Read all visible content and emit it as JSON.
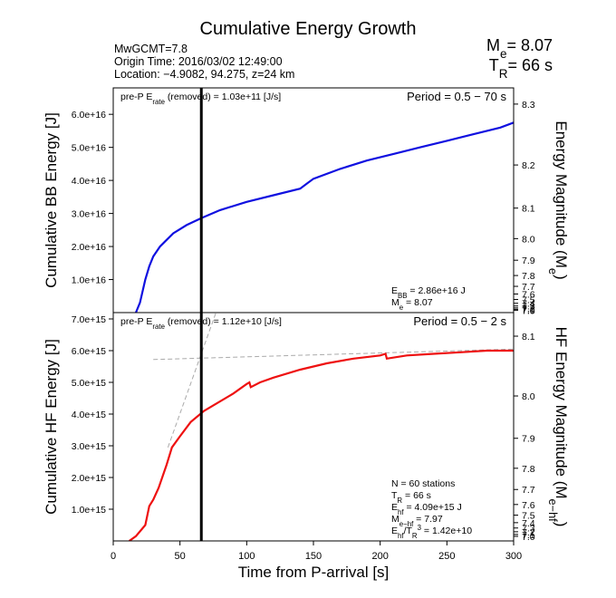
{
  "title": "Cumulative Energy Growth",
  "header_lines": [
    "MwGCMT=7.8",
    "Origin Time: 2016/03/02 12:49:00",
    "Location: −4.9082, 94.275, z=24 km"
  ],
  "summary": [
    [
      {
        "t": "M"
      },
      {
        "sub": "e"
      },
      {
        "t": "= 8.07"
      }
    ],
    [
      {
        "t": "T"
      },
      {
        "sub": "R"
      },
      {
        "t": "= 66 s"
      }
    ]
  ],
  "chart_data": [
    {
      "type": "line",
      "ylabel": "Cumulative BB Energy [J]",
      "y2label": [
        {
          "t": "Energy Magnitude (M"
        },
        {
          "sub": "e"
        },
        {
          "t": ")"
        }
      ],
      "xlim": [
        0,
        300
      ],
      "ylim": [
        0,
        6.8e+16
      ],
      "yticks": [
        {
          "value": 1e+16,
          "label": "1.0e+16"
        },
        {
          "value": 2e+16,
          "label": "2.0e+16"
        },
        {
          "value": 3e+16,
          "label": "3.0e+16"
        },
        {
          "value": 4e+16,
          "label": "4.0e+16"
        },
        {
          "value": 5e+16,
          "label": "5.0e+16"
        },
        {
          "value": 6e+16,
          "label": "6.0e+16"
        }
      ],
      "y2ticks": [
        8.3,
        8.2,
        8.1,
        {
          "value": 8,
          "label": "8.0"
        },
        7.9,
        7.8,
        7.7,
        7.6,
        7.5,
        7.4,
        7.3,
        7.2,
        7.1,
        {
          "value": 7,
          "label": "7.0"
        }
      ],
      "series": [
        {
          "color": "#1010e0",
          "x": [
            17,
            20,
            24,
            27,
            30,
            35,
            40,
            45,
            55,
            66,
            80,
            100,
            120,
            140,
            145,
            150,
            170,
            190,
            210,
            230,
            250,
            270,
            290,
            300
          ],
          "values": [
            0,
            3000000000000000.0,
            1e+16,
            1.4e+16,
            1.7e+16,
            2e+16,
            2.2e+16,
            2.4e+16,
            2.65e+16,
            2.86e+16,
            3.1e+16,
            3.35e+16,
            3.55e+16,
            3.75e+16,
            3.9e+16,
            4.05e+16,
            4.35e+16,
            4.6e+16,
            4.8e+16,
            5e+16,
            5.2e+16,
            5.4e+16,
            5.6e+16,
            5.75e+16
          ]
        }
      ],
      "vline": 66,
      "top_left": [
        {
          "t": "pre-P E"
        },
        {
          "sub": "rate"
        },
        {
          "t": " (removed) = 1.03e+11 [J/s]"
        }
      ],
      "top_right": "Period = 0.5 − 70 s",
      "notes": [
        [
          {
            "t": "E"
          },
          {
            "sub": "BB"
          },
          {
            "t": " = 2.86e+16 J"
          }
        ],
        [
          {
            "t": "M"
          },
          {
            "sub": "e"
          },
          {
            "t": " = 8.07"
          }
        ]
      ]
    },
    {
      "type": "line",
      "ylabel": "Cumulative HF Energy [J]",
      "y2label": [
        {
          "t": "HF Energy Magnitude (M"
        },
        {
          "sub": "e−hf"
        },
        {
          "t": ")"
        }
      ],
      "xlabel": "Time from P-arrival [s]",
      "xlim": [
        0,
        300
      ],
      "xticks": [
        0,
        50,
        100,
        150,
        200,
        250,
        300
      ],
      "ylim": [
        0,
        7200000000000000.0
      ],
      "yticks": [
        {
          "value": 1000000000000000.0,
          "label": "1.0e+15"
        },
        {
          "value": 2000000000000000.0,
          "label": "2.0e+15"
        },
        {
          "value": 3000000000000000.0,
          "label": "3.0e+15"
        },
        {
          "value": 4000000000000000.0,
          "label": "4.0e+15"
        },
        {
          "value": 5000000000000000.0,
          "label": "5.0e+15"
        },
        {
          "value": 6000000000000000.0,
          "label": "6.0e+15"
        },
        {
          "value": 7000000000000000.0,
          "label": "7.0e+15"
        }
      ],
      "y2ticks": [
        8.1,
        {
          "value": 8,
          "label": "8.0"
        },
        7.9,
        7.8,
        7.7,
        7.6,
        7.5,
        7.4,
        7.3,
        7.2,
        7.1,
        {
          "value": 7,
          "label": "7.0"
        }
      ],
      "series": [
        {
          "color": "#ee1111",
          "x": [
            12,
            17,
            20,
            24,
            27,
            30,
            34,
            40,
            44,
            50,
            58,
            68,
            78,
            90,
            100,
            102,
            103,
            110,
            120,
            140,
            160,
            180,
            200,
            204,
            205,
            220,
            240,
            260,
            280,
            300
          ],
          "values": [
            0,
            150000000000000.0,
            300000000000000.0,
            500000000000000.0,
            1100000000000000.0,
            1300000000000000.0,
            1670000000000000.0,
            2400000000000000.0,
            2950000000000000.0,
            3300000000000000.0,
            3750000000000000.0,
            4100000000000000.0,
            4350000000000000.0,
            4650000000000000.0,
            4950000000000000.0,
            5000000000000000.0,
            4850000000000000.0,
            5000000000000000.0,
            5150000000000000.0,
            5400000000000000.0,
            5600000000000000.0,
            5750000000000000.0,
            5850000000000000.0,
            5900000000000000.0,
            5750000000000000.0,
            5850000000000000.0,
            5900000000000000.0,
            5950000000000000.0,
            6000000000000000.0,
            6000000000000000.0
          ]
        }
      ],
      "reference_lines": [
        {
          "color": "#aaaaaa",
          "x": [
            41,
            77
          ],
          "values": [
            2950000000000000.0,
            7200000000000000.0
          ]
        },
        {
          "color": "#aaaaaa",
          "x": [
            30,
            300
          ],
          "values": [
            5720000000000000.0,
            6050000000000000.0
          ]
        }
      ],
      "vline": 66,
      "top_left": [
        {
          "t": "pre-P E"
        },
        {
          "sub": "rate"
        },
        {
          "t": " (removed) = 1.12e+10 [J/s]"
        }
      ],
      "top_right": "Period = 0.5 − 2 s",
      "notes": [
        [
          {
            "t": "N = 60 stations"
          }
        ],
        [
          {
            "t": "T"
          },
          {
            "sub": "R"
          },
          {
            "t": " = 66  s"
          }
        ],
        [
          {
            "t": "E"
          },
          {
            "sub": "hf"
          },
          {
            "t": " = 4.09e+15 J"
          }
        ],
        [
          {
            "t": "M"
          },
          {
            "sub": "e−hf"
          },
          {
            "t": " = 7.97"
          }
        ],
        [
          {
            "t": "E"
          },
          {
            "sub": "hf"
          },
          {
            "t": "/T"
          },
          {
            "sub": "R"
          },
          {
            "sup": "3"
          },
          {
            "t": " =  1.42e+10"
          }
        ]
      ]
    }
  ]
}
